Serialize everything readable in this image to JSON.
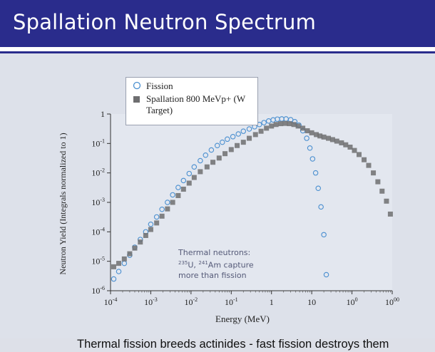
{
  "slide": {
    "title": "Spallation Neutron Spectrum",
    "footer": "Thermal fission breeds actinides  -  fast fission destroys them"
  },
  "chart_data": {
    "type": "scatter",
    "xlabel": "Energy (MeV)",
    "ylabel": "Neutron Yield (Integrals normalized to 1)",
    "x_scale": "log",
    "y_scale": "log",
    "xlim": [
      0.0001,
      1000
    ],
    "ylim": [
      1e-06,
      1
    ],
    "x_ticks": [
      "10-4",
      "10-3",
      "10-2",
      "10-1",
      "1",
      "10",
      "100",
      "1000"
    ],
    "y_ticks": [
      "10-6",
      "10-5",
      "10-4",
      "10-3",
      "10-2",
      "10-1",
      "1"
    ],
    "legend": [
      "Fission",
      "Spallation 800 MeVp+ (W Target)"
    ],
    "legend_position": "top-left",
    "annotation": [
      "Thermal neutrons:",
      "235U, 241Am capture",
      "more than fission"
    ],
    "series": [
      {
        "name": "Fission",
        "marker": "open-circle",
        "color": "#4a8fd0",
        "points": [
          [
            0.00012,
            2.5e-06
          ],
          [
            0.00016,
            4.5e-06
          ],
          [
            0.00022,
            8.5e-06
          ],
          [
            0.0003,
            1.6e-05
          ],
          [
            0.0004,
            3e-05
          ],
          [
            0.00055,
            5.5e-05
          ],
          [
            0.00075,
            0.0001
          ],
          [
            0.001,
            0.00018
          ],
          [
            0.0014,
            0.00032
          ],
          [
            0.0019,
            0.00058
          ],
          [
            0.0026,
            0.001
          ],
          [
            0.0035,
            0.0018
          ],
          [
            0.0048,
            0.0032
          ],
          [
            0.0065,
            0.0055
          ],
          [
            0.009,
            0.0095
          ],
          [
            0.012,
            0.016
          ],
          [
            0.017,
            0.026
          ],
          [
            0.023,
            0.04
          ],
          [
            0.032,
            0.06
          ],
          [
            0.045,
            0.085
          ],
          [
            0.06,
            0.11
          ],
          [
            0.08,
            0.14
          ],
          [
            0.11,
            0.17
          ],
          [
            0.15,
            0.21
          ],
          [
            0.2,
            0.26
          ],
          [
            0.28,
            0.31
          ],
          [
            0.38,
            0.37
          ],
          [
            0.5,
            0.44
          ],
          [
            0.65,
            0.51
          ],
          [
            0.85,
            0.58
          ],
          [
            1.1,
            0.63
          ],
          [
            1.4,
            0.67
          ],
          [
            1.8,
            0.68
          ],
          [
            2.3,
            0.68
          ],
          [
            3.0,
            0.64
          ],
          [
            3.8,
            0.55
          ],
          [
            4.8,
            0.42
          ],
          [
            6.0,
            0.27
          ],
          [
            7.5,
            0.15
          ],
          [
            9.0,
            0.07
          ],
          [
            10.5,
            0.03
          ],
          [
            12.5,
            0.01
          ],
          [
            14.5,
            0.003
          ],
          [
            17,
            0.0007
          ],
          [
            20,
            8e-05
          ],
          [
            23,
            3.5e-06
          ]
        ]
      },
      {
        "name": "Spallation 800 MeVp+ (W Target)",
        "marker": "filled-square",
        "color": "#6e6e70",
        "points": [
          [
            0.00012,
            6.5e-06
          ],
          [
            0.00016,
            8.5e-06
          ],
          [
            0.00022,
            1.2e-05
          ],
          [
            0.0003,
            1.8e-05
          ],
          [
            0.0004,
            2.8e-05
          ],
          [
            0.00055,
            4.5e-05
          ],
          [
            0.00075,
            7.5e-05
          ],
          [
            0.001,
            0.00012
          ],
          [
            0.0014,
            0.0002
          ],
          [
            0.0019,
            0.00034
          ],
          [
            0.0026,
            0.0006
          ],
          [
            0.0035,
            0.001
          ],
          [
            0.0048,
            0.0017
          ],
          [
            0.0065,
            0.0028
          ],
          [
            0.009,
            0.0045
          ],
          [
            0.012,
            0.007
          ],
          [
            0.017,
            0.011
          ],
          [
            0.025,
            0.016
          ],
          [
            0.035,
            0.023
          ],
          [
            0.05,
            0.032
          ],
          [
            0.07,
            0.045
          ],
          [
            0.1,
            0.062
          ],
          [
            0.14,
            0.085
          ],
          [
            0.2,
            0.11
          ],
          [
            0.28,
            0.15
          ],
          [
            0.4,
            0.2
          ],
          [
            0.55,
            0.26
          ],
          [
            0.75,
            0.33
          ],
          [
            1.0,
            0.39
          ],
          [
            1.3,
            0.44
          ],
          [
            1.7,
            0.47
          ],
          [
            2.2,
            0.48
          ],
          [
            2.8,
            0.47
          ],
          [
            3.6,
            0.44
          ],
          [
            4.6,
            0.39
          ],
          [
            6.0,
            0.33
          ],
          [
            7.8,
            0.27
          ],
          [
            10,
            0.23
          ],
          [
            13,
            0.2
          ],
          [
            16,
            0.18
          ],
          [
            20,
            0.165
          ],
          [
            26,
            0.15
          ],
          [
            33,
            0.135
          ],
          [
            42,
            0.12
          ],
          [
            55,
            0.105
          ],
          [
            70,
            0.09
          ],
          [
            90,
            0.075
          ],
          [
            115,
            0.058
          ],
          [
            150,
            0.042
          ],
          [
            200,
            0.028
          ],
          [
            260,
            0.018
          ],
          [
            340,
            0.01
          ],
          [
            440,
            0.005
          ],
          [
            560,
            0.0024
          ],
          [
            720,
            0.0011
          ],
          [
            900,
            0.0004
          ]
        ]
      }
    ]
  }
}
